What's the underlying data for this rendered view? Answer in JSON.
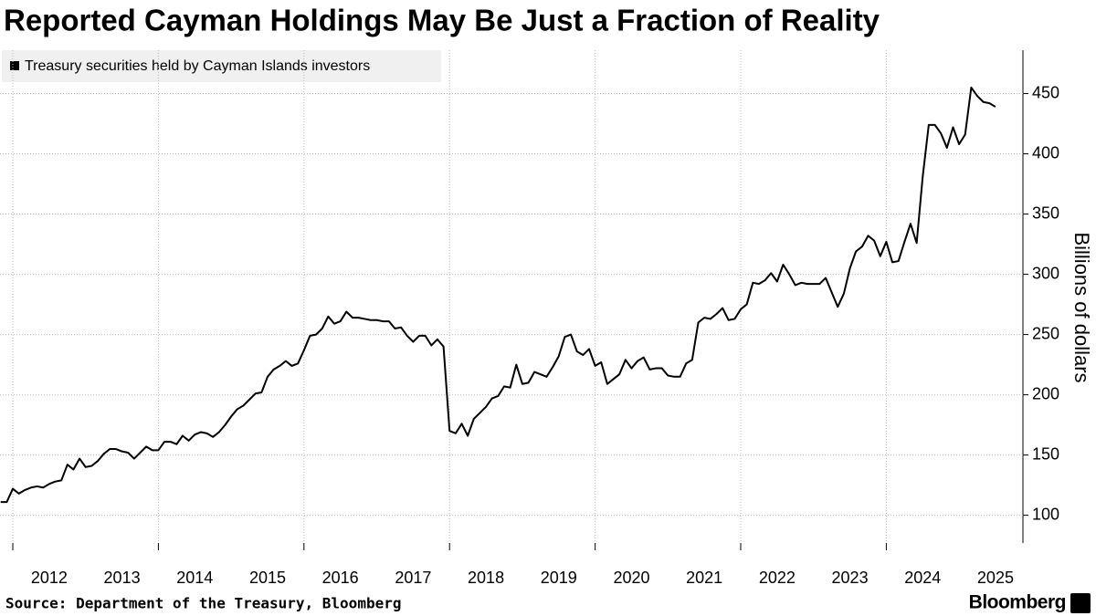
{
  "chart_data": {
    "type": "line",
    "title": "Reported Cayman Holdings May Be Just a Fraction of Reality",
    "y_label": "Billions of dollars",
    "source": "Source: Department of the Treasury, Bloomberg",
    "brand": "Bloomberg",
    "grid": true,
    "legend": "top-left",
    "xlim": [
      2011.824,
      2025.877
    ],
    "xticks": [
      2012,
      2013,
      2014,
      2015,
      2016,
      2017,
      2018,
      2019,
      2020,
      2021,
      2022,
      2023,
      2024,
      2025
    ],
    "ylim": [
      77,
      486
    ],
    "yticks": [
      100,
      150,
      200,
      250,
      300,
      350,
      400,
      450
    ],
    "x": [
      2011.833,
      2011.917,
      2012.0,
      2012.083,
      2012.167,
      2012.25,
      2012.333,
      2012.417,
      2012.5,
      2012.583,
      2012.667,
      2012.75,
      2012.833,
      2012.917,
      2013.0,
      2013.083,
      2013.167,
      2013.25,
      2013.333,
      2013.417,
      2013.5,
      2013.583,
      2013.667,
      2013.75,
      2013.833,
      2013.917,
      2014.0,
      2014.083,
      2014.167,
      2014.25,
      2014.333,
      2014.417,
      2014.5,
      2014.583,
      2014.667,
      2014.75,
      2014.833,
      2014.917,
      2015.0,
      2015.083,
      2015.167,
      2015.25,
      2015.333,
      2015.417,
      2015.5,
      2015.583,
      2015.667,
      2015.75,
      2015.833,
      2015.917,
      2016.0,
      2016.083,
      2016.167,
      2016.25,
      2016.333,
      2016.417,
      2016.5,
      2016.583,
      2016.667,
      2016.75,
      2016.833,
      2016.917,
      2017.0,
      2017.083,
      2017.167,
      2017.25,
      2017.333,
      2017.417,
      2017.5,
      2017.583,
      2017.667,
      2017.75,
      2017.833,
      2017.917,
      2018.0,
      2018.083,
      2018.167,
      2018.25,
      2018.333,
      2018.417,
      2018.5,
      2018.583,
      2018.667,
      2018.75,
      2018.833,
      2018.917,
      2019.0,
      2019.083,
      2019.167,
      2019.25,
      2019.333,
      2019.417,
      2019.5,
      2019.583,
      2019.667,
      2019.75,
      2019.833,
      2019.917,
      2020.0,
      2020.083,
      2020.167,
      2020.25,
      2020.333,
      2020.417,
      2020.5,
      2020.583,
      2020.667,
      2020.75,
      2020.833,
      2020.917,
      2021.0,
      2021.083,
      2021.167,
      2021.25,
      2021.333,
      2021.417,
      2021.5,
      2021.583,
      2021.667,
      2021.75,
      2021.833,
      2021.917,
      2022.0,
      2022.083,
      2022.167,
      2022.25,
      2022.333,
      2022.417,
      2022.5,
      2022.583,
      2022.667,
      2022.75,
      2022.833,
      2022.917,
      2023.0,
      2023.083,
      2023.167,
      2023.25,
      2023.333,
      2023.417,
      2023.5,
      2023.583,
      2023.667,
      2023.75,
      2023.833,
      2023.917,
      2024.0,
      2024.083,
      2024.167,
      2024.25,
      2024.333,
      2024.417,
      2024.5,
      2024.583,
      2024.667,
      2024.75,
      2024.833,
      2024.917,
      2025.0,
      2025.083,
      2025.167,
      2025.25,
      2025.333,
      2025.417,
      2025.5
    ],
    "series": [
      {
        "name": "Treasury securities held by Cayman Islands investors",
        "color": "#000000",
        "values": [
          111,
          111,
          122,
          118,
          121,
          123,
          124,
          123,
          126,
          128,
          129,
          142,
          138,
          147,
          140,
          141,
          145,
          151,
          155,
          155,
          153,
          152,
          147,
          152,
          157,
          154,
          154,
          161,
          161,
          159,
          166,
          162,
          167,
          169,
          168,
          165,
          169,
          175,
          182,
          188,
          191,
          196,
          201,
          202,
          215,
          221,
          224,
          228,
          224,
          226,
          237,
          249,
          250,
          255,
          265,
          259,
          261,
          269,
          264,
          264,
          263,
          262,
          262,
          261,
          261,
          255,
          256,
          249,
          244,
          249,
          249,
          241,
          246,
          240,
          170,
          168,
          176,
          166,
          180,
          185,
          190,
          197,
          199,
          207,
          206,
          225,
          209,
          210,
          219,
          217,
          215,
          223,
          232,
          248,
          250,
          236,
          233,
          238,
          224,
          227,
          209,
          213,
          217,
          229,
          222,
          228,
          231,
          221,
          222,
          222,
          216,
          215,
          215,
          226,
          229,
          260,
          264,
          263,
          267,
          272,
          262,
          263,
          271,
          275,
          293,
          292,
          295,
          301,
          294,
          308,
          300,
          291,
          293,
          292,
          292,
          292,
          297,
          285,
          273,
          284,
          305,
          319,
          323,
          332,
          328,
          315,
          327,
          310,
          311,
          327,
          342,
          326,
          381,
          424,
          424,
          417,
          405,
          422,
          408,
          416,
          455,
          448,
          443,
          442,
          439
        ]
      }
    ]
  }
}
